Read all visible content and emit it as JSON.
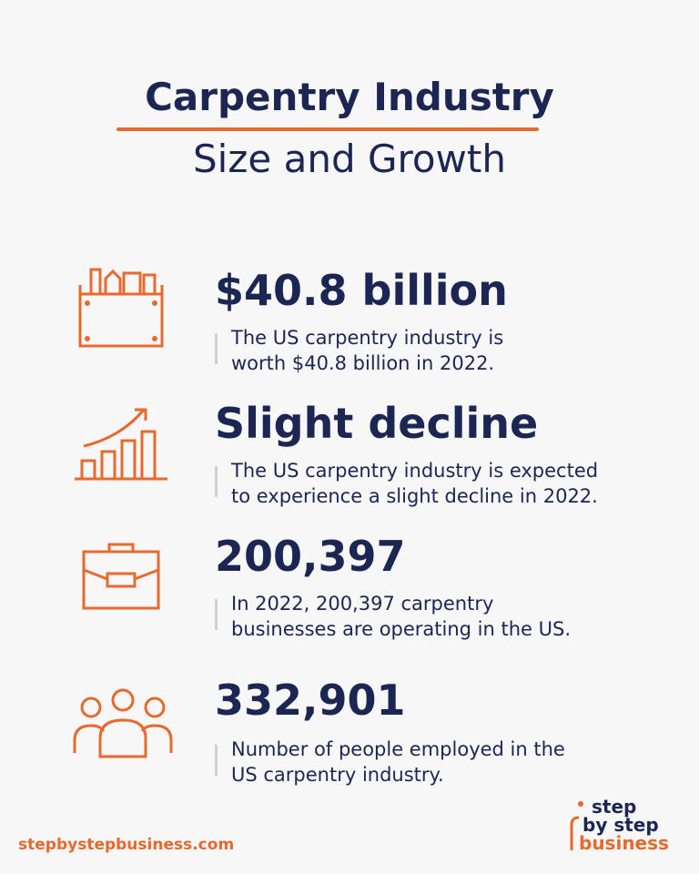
{
  "header": {
    "title": "Carpentry Industry",
    "subtitle": "Size and Growth"
  },
  "stats": [
    {
      "heading": "$40.8 billion",
      "description": [
        "The US carpentry industry is",
        "worth $40.8 billion in 2022."
      ]
    },
    {
      "heading": "Slight decline",
      "description": [
        "The US carpentry industry is expected",
        "to experience a slight decline in 2022."
      ]
    },
    {
      "heading": "200,397",
      "description": [
        "In 2022, 200,397 carpentry",
        "businesses are operating in the US."
      ]
    },
    {
      "heading": "332,901",
      "description": [
        "Number of people employed in the",
        "US carpentry industry."
      ]
    }
  ],
  "footer": {
    "website": "stepbystepbusiness.com",
    "logo": [
      "step",
      "by step",
      "business"
    ]
  }
}
